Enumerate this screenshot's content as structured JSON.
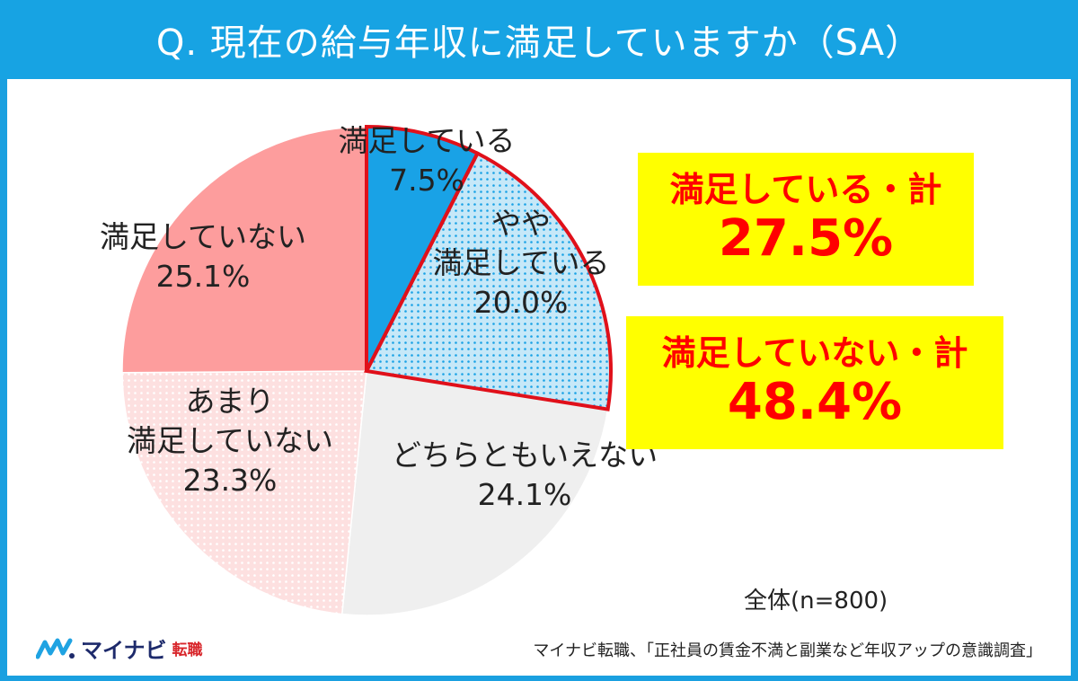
{
  "title": "Q. 現在の給与年収に満足していますか（SA）",
  "chart_data": {
    "type": "pie",
    "slices": [
      {
        "lines": [
          "満足している"
        ],
        "value_label": "7.5%",
        "value": 7.5,
        "color": "#19a2e6",
        "pattern": "none",
        "highlight": true
      },
      {
        "lines": [
          "やや",
          "満足している"
        ],
        "value_label": "20.0%",
        "value": 20.0,
        "color": "#c6e8f8",
        "dot_color": "#19a2e6",
        "pattern": "dots",
        "highlight": true
      },
      {
        "lines": [
          "どちらともいえない"
        ],
        "value_label": "24.1%",
        "value": 24.1,
        "color": "#efefef",
        "pattern": "none",
        "highlight": false
      },
      {
        "lines": [
          "あまり",
          "満足していない"
        ],
        "value_label": "23.3%",
        "value": 23.3,
        "color": "#fde0e0",
        "dot_color": "#ffffff",
        "pattern": "dots",
        "highlight": false
      },
      {
        "lines": [
          "満足していない"
        ],
        "value_label": "25.1%",
        "value": 25.1,
        "color": "#fd9d9d",
        "pattern": "none",
        "highlight": false
      }
    ],
    "start_angle_deg": 0,
    "highlight_color": "#e0101a"
  },
  "summary": {
    "satisfied_label": "満足している・計",
    "satisfied_value": "27.5%",
    "unsatisfied_label": "満足していない・計",
    "unsatisfied_value": "48.4%"
  },
  "sample_size": "全体(n=800)",
  "logo": {
    "main": "マイナビ",
    "sub": "転職"
  },
  "source": "マイナビ転職、「正社員の賃金不満と副業など年収アップの意識調査」"
}
